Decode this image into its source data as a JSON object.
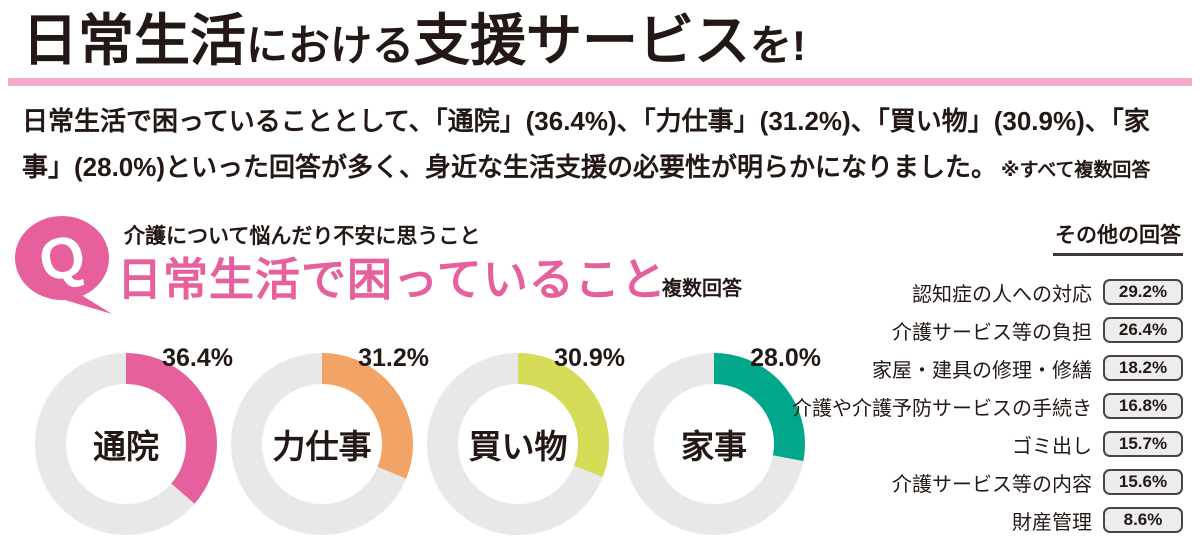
{
  "header": {
    "title_segments": [
      {
        "text": "日常生活",
        "size": "large"
      },
      {
        "text": "における",
        "size": "small"
      },
      {
        "text": "支援サービス",
        "size": "large"
      },
      {
        "text": "を!",
        "size": "small"
      }
    ],
    "accent_bar_color": "#f3aacb"
  },
  "lead": {
    "line1": "日常生活で困っていることとして、「通院」(36.4%)、「力仕事」(31.2%)、「買い物」(30.9%)、「家",
    "line2": "事」(28.0%)といった回答が多く、身近な生活支援の必要性が明らかになりました。",
    "note": "※すべて複数回答"
  },
  "q_bubble": {
    "letter": "Q",
    "color": "#e7609e"
  },
  "chart_data": {
    "type": "pie",
    "variant": "donut-small-multiples",
    "context_label": "介護について悩んだり不安に思うこと",
    "title": "日常生活で困っていること",
    "note": "複数回答",
    "ring_background_color": "#e8e8e8",
    "series": [
      {
        "label": "通院",
        "value": 36.4,
        "color": "#e7609e"
      },
      {
        "label": "力仕事",
        "value": 31.2,
        "color": "#f2a366"
      },
      {
        "label": "買い物",
        "value": 30.9,
        "color": "#d6dc57"
      },
      {
        "label": "家事",
        "value": 28.0,
        "color": "#00a78a"
      }
    ],
    "others": {
      "header": "その他の回答",
      "items": [
        {
          "label": "認知症の人への対応",
          "value": "29.2%"
        },
        {
          "label": "介護サービス等の負担",
          "value": "26.4%"
        },
        {
          "label": "家屋・建具の修理・修繕",
          "value": "18.2%"
        },
        {
          "label": "介護や介護予防サービスの手続き",
          "value": "16.8%"
        },
        {
          "label": "ゴミ出し",
          "value": "15.7%"
        },
        {
          "label": "介護サービス等の内容",
          "value": "15.6%"
        },
        {
          "label": "財産管理",
          "value": "8.6%"
        }
      ]
    }
  }
}
